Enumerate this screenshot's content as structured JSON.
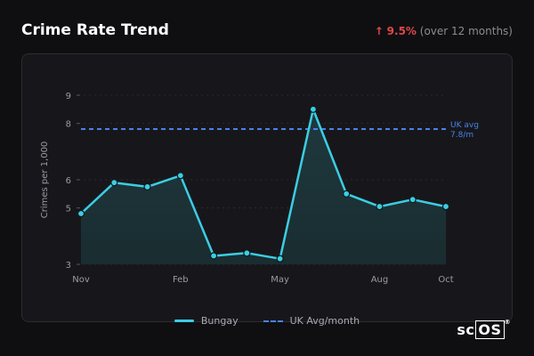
{
  "header": {
    "title": "Crime Rate Trend",
    "change_arrow": "↑",
    "change_pct": "9.5%",
    "change_period": "(over 12 months)"
  },
  "legend": {
    "series1": "Bungay",
    "series2": "UK Avg/month"
  },
  "branding": {
    "logo_prefix": "sc",
    "logo_boxed": "OS",
    "logo_mark": "®"
  },
  "colors": {
    "line": "#3ccde3",
    "avg_line": "#4a82e8",
    "change_up": "#e04848",
    "card_bg": "#17171b"
  },
  "chart_data": {
    "type": "line",
    "ylabel": "Crimes per 1,000",
    "x_ticks": [
      "Nov",
      "Feb",
      "May",
      "Aug",
      "Oct"
    ],
    "y_ticks": [
      3,
      5,
      6,
      8,
      9
    ],
    "series": [
      {
        "name": "Bungay",
        "values": [
          4.8,
          5.9,
          5.75,
          6.15,
          3.3,
          3.4,
          3.2,
          8.5,
          5.5,
          5.05,
          5.3,
          5.05
        ]
      },
      {
        "name": "UK Avg/month",
        "constant": 7.8,
        "annotation_line1": "UK avg",
        "annotation_line2": "7.8/m"
      }
    ],
    "grid": true,
    "legend_position": "bottom-center"
  }
}
